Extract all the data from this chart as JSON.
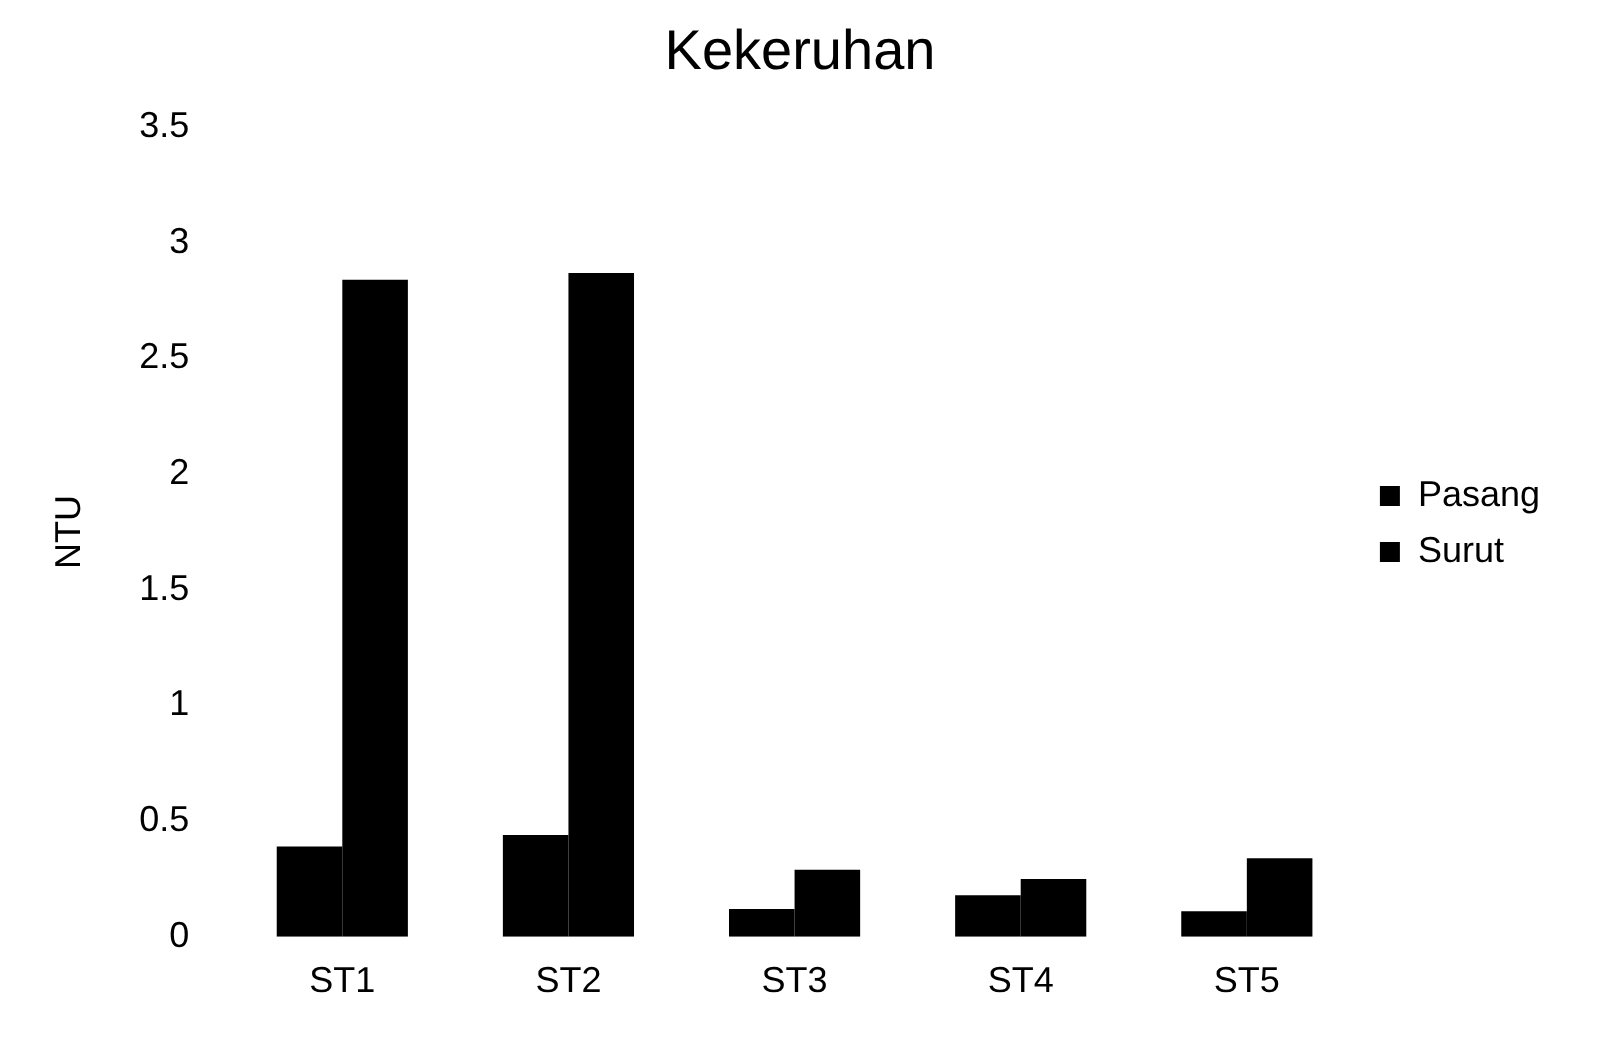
{
  "chart_data": {
    "type": "bar",
    "title": "Kekeruhan",
    "ylabel": "NTU",
    "categories": [
      "ST1",
      "ST2",
      "ST3",
      "ST4",
      "ST5"
    ],
    "series": [
      {
        "name": "Pasang",
        "color": "#000000",
        "values": [
          0.39,
          0.44,
          0.12,
          0.18,
          0.11
        ]
      },
      {
        "name": "Surut",
        "color": "#000000",
        "values": [
          2.84,
          2.87,
          0.29,
          0.25,
          0.34
        ]
      }
    ],
    "ylim": [
      0,
      3.5
    ],
    "yticks": [
      0,
      0.5,
      1,
      1.5,
      2,
      2.5,
      3,
      3.5
    ],
    "grid": false,
    "legend": "right"
  }
}
